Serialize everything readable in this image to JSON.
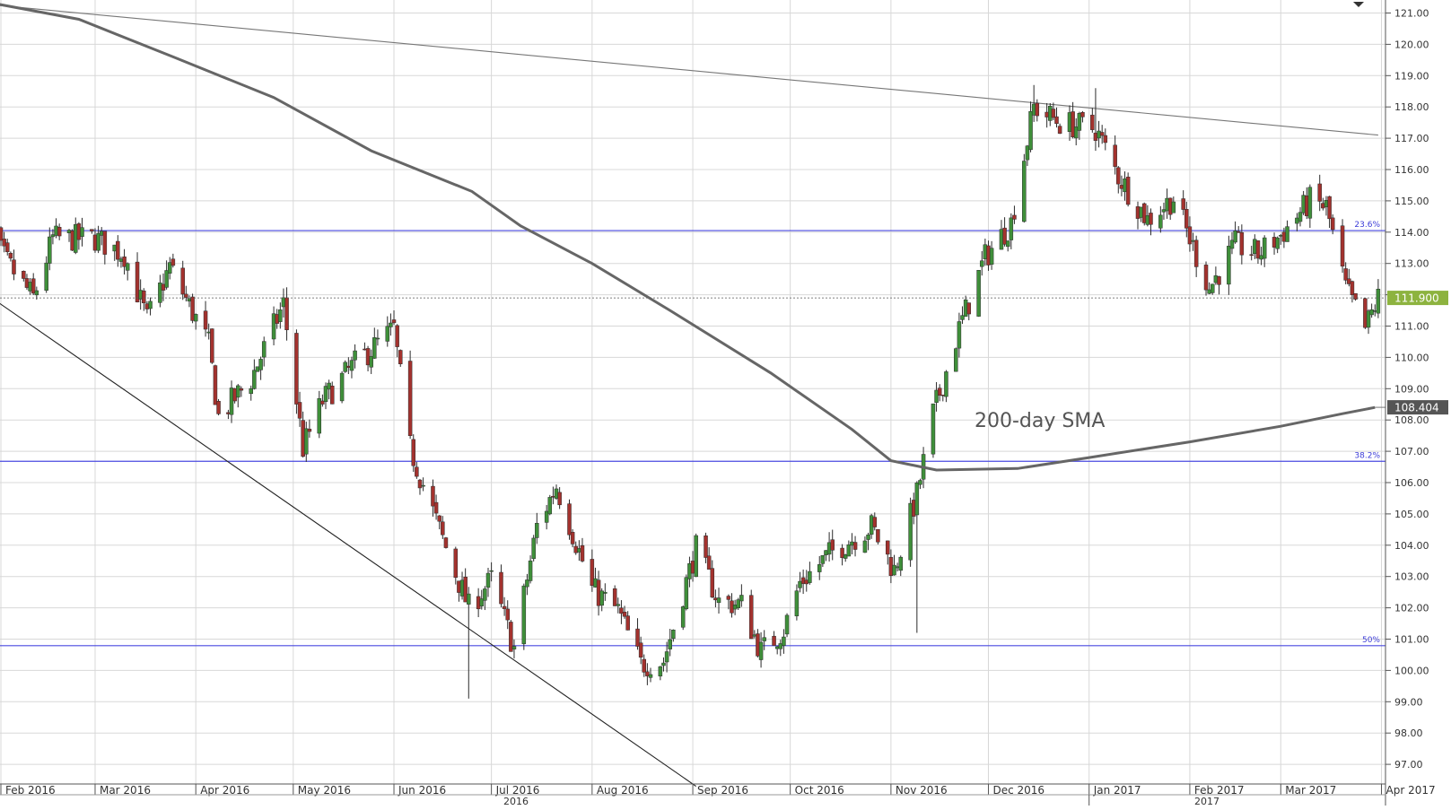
{
  "chart_data": {
    "type": "candlestick",
    "title": "",
    "ylim": [
      96.3,
      121.4
    ],
    "y_ticks": [
      "121.00",
      "120.00",
      "119.00",
      "118.00",
      "117.00",
      "116.00",
      "115.00",
      "114.00",
      "113.00",
      "112.00",
      "111.00",
      "110.00",
      "109.00",
      "108.00",
      "107.00",
      "106.00",
      "105.00",
      "104.00",
      "103.00",
      "102.00",
      "101.00",
      "100.00",
      "99.00",
      "98.00",
      "97.00"
    ],
    "x_labels": [
      "Feb 2016",
      "Mar 2016",
      "Apr 2016",
      "May 2016",
      "Jun 2016",
      "Jul 2016",
      "Aug 2016",
      "Sep 2016",
      "Oct 2016",
      "Nov 2016",
      "Dec 2016",
      "Jan 2017",
      "Feb 2017",
      "Mar 2017",
      "Apr 2017"
    ],
    "year_labels": [
      "2016",
      "2017"
    ],
    "grid": true,
    "last_price_tag": {
      "value": 111.9,
      "label": "111.900",
      "color": "#8db33f"
    },
    "sma_tag": {
      "value": 108.404,
      "label": "108.404",
      "color": "#555555"
    },
    "sma_annotation": "200-day SMA",
    "fib_levels": [
      {
        "label": "23.6%",
        "value": 114.05
      },
      {
        "label": "38.2%",
        "value": 106.68
      },
      {
        "label": "50%",
        "value": 100.79
      }
    ],
    "trendlines": [
      {
        "name": "resistance",
        "from": {
          "date": "2016-01-15",
          "value": 121.4
        },
        "to": {
          "date": "2017-03-31",
          "value": 117.1
        }
      },
      {
        "name": "support",
        "from": {
          "date": "2016-01-25",
          "value": 112.2
        },
        "to": {
          "date": "2016-09-02",
          "value": 96.3
        }
      }
    ],
    "sma_200": [
      [
        "2016-01-25",
        121.4
      ],
      [
        "2016-02-25",
        120.8
      ],
      [
        "2016-03-25",
        119.6
      ],
      [
        "2016-04-25",
        118.3
      ],
      [
        "2016-05-25",
        116.6
      ],
      [
        "2016-06-25",
        115.3
      ],
      [
        "2016-07-10",
        114.2
      ],
      [
        "2016-08-01",
        113.0
      ],
      [
        "2016-08-25",
        111.5
      ],
      [
        "2016-09-25",
        109.5
      ],
      [
        "2016-10-20",
        107.7
      ],
      [
        "2016-11-01",
        106.7
      ],
      [
        "2016-11-15",
        106.4
      ],
      [
        "2016-12-10",
        106.45
      ],
      [
        "2017-01-01",
        106.8
      ],
      [
        "2017-02-01",
        107.3
      ],
      [
        "2017-03-01",
        107.8
      ],
      [
        "2017-03-20",
        108.2
      ],
      [
        "2017-03-30",
        108.4
      ]
    ],
    "anchor_closes": [
      [
        "2016-01-25",
        114.6
      ],
      [
        "2016-02-03",
        113.0
      ],
      [
        "2016-02-11",
        111.9
      ],
      [
        "2016-02-17",
        113.8
      ],
      [
        "2016-03-01",
        113.8
      ],
      [
        "2016-03-10",
        113.3
      ],
      [
        "2016-03-17",
        111.2
      ],
      [
        "2016-03-24",
        112.9
      ],
      [
        "2016-04-05",
        110.4
      ],
      [
        "2016-04-08",
        108.1
      ],
      [
        "2016-04-18",
        109.3
      ],
      [
        "2016-04-28",
        111.7
      ],
      [
        "2016-05-04",
        107.1
      ],
      [
        "2016-05-10",
        108.6
      ],
      [
        "2016-05-20",
        109.8
      ],
      [
        "2016-06-01",
        110.9
      ],
      [
        "2016-06-06",
        107.1
      ],
      [
        "2016-06-16",
        104.2
      ],
      [
        "2016-06-24",
        102.0
      ],
      [
        "2016-07-01",
        102.9
      ],
      [
        "2016-07-08",
        100.7
      ],
      [
        "2016-07-15",
        104.6
      ],
      [
        "2016-07-21",
        105.9
      ],
      [
        "2016-08-01",
        102.6
      ],
      [
        "2016-08-09",
        101.9
      ],
      [
        "2016-08-16",
        100.2
      ],
      [
        "2016-08-23",
        100.3
      ],
      [
        "2016-09-02",
        103.9
      ],
      [
        "2016-09-09",
        102.2
      ],
      [
        "2016-09-16",
        102.1
      ],
      [
        "2016-09-22",
        100.6
      ],
      [
        "2016-09-29",
        101.3
      ],
      [
        "2016-10-04",
        102.8
      ],
      [
        "2016-10-14",
        103.8
      ],
      [
        "2016-10-26",
        104.6
      ],
      [
        "2016-11-02",
        103.2
      ],
      [
        "2016-11-09",
        105.6
      ],
      [
        "2016-11-14",
        108.2
      ],
      [
        "2016-11-22",
        110.9
      ],
      [
        "2016-11-30",
        113.2
      ],
      [
        "2016-12-08",
        114.3
      ],
      [
        "2016-12-15",
        118.0
      ],
      [
        "2016-12-23",
        117.5
      ],
      [
        "2017-01-03",
        117.3
      ],
      [
        "2017-01-10",
        115.8
      ],
      [
        "2017-01-19",
        114.4
      ],
      [
        "2017-01-27",
        115.1
      ],
      [
        "2017-02-07",
        112.2
      ],
      [
        "2017-02-15",
        113.6
      ],
      [
        "2017-02-22",
        113.3
      ],
      [
        "2017-03-01",
        113.9
      ],
      [
        "2017-03-10",
        115.0
      ],
      [
        "2017-03-15",
        114.8
      ],
      [
        "2017-03-21",
        112.2
      ],
      [
        "2017-03-27",
        110.9
      ],
      [
        "2017-03-31",
        111.9
      ]
    ],
    "spikes": [
      {
        "date": "2016-06-24",
        "low": 99.1
      },
      {
        "date": "2016-11-09",
        "low": 101.2
      },
      {
        "date": "2016-12-15",
        "high": 118.7
      },
      {
        "date": "2017-01-03",
        "high": 118.6
      }
    ]
  }
}
